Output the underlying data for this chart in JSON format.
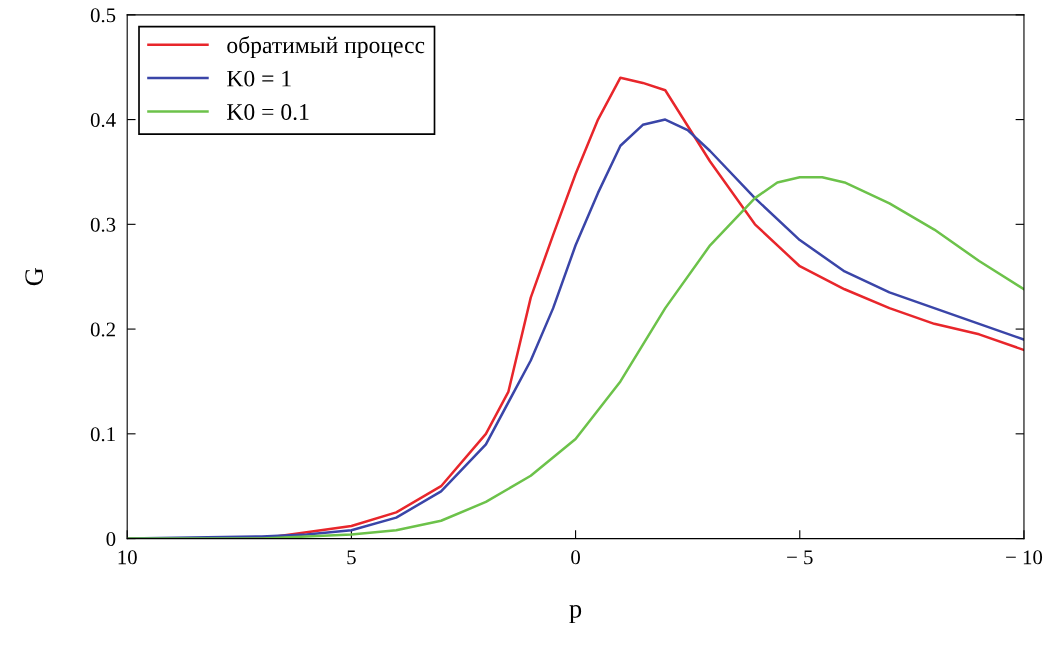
{
  "chart_data": {
    "type": "line",
    "xlabel": "p",
    "ylabel": "G",
    "xlim": [
      10,
      -10
    ],
    "xticks": [
      10,
      5,
      0,
      {
        "value": -5,
        "label": "− 5"
      },
      {
        "value": -10,
        "label": "− 10"
      }
    ],
    "ylim": [
      0,
      0.5
    ],
    "yticks": [
      0,
      0.1,
      0.2,
      0.3,
      0.4,
      0.5
    ],
    "grid": false,
    "legend": "top left",
    "marker": "none",
    "line_style": "solid",
    "series": [
      {
        "name": "обратимый процесс",
        "color": "#e8262b",
        "x": [
          10,
          7,
          5,
          4,
          3,
          2,
          1.5,
          1,
          0.5,
          0,
          -0.5,
          -1,
          -1.5,
          -2,
          -3,
          -4,
          -5,
          -6,
          -7,
          -8,
          -9,
          -10
        ],
        "values": [
          0,
          0,
          0.012,
          0.025,
          0.05,
          0.1,
          0.14,
          0.23,
          0.29,
          0.348,
          0.4,
          0.44,
          0.435,
          0.428,
          0.36,
          0.3,
          0.26,
          0.238,
          0.22,
          0.205,
          0.195,
          0.18
        ]
      },
      {
        "name": "K0 = 1",
        "color": "#3a45a8",
        "x": [
          10,
          7,
          6,
          5,
          4,
          3,
          2,
          1,
          0.5,
          0,
          -0.5,
          -1,
          -1.5,
          -2,
          -2.5,
          -3,
          -4,
          -5,
          -6,
          -7,
          -8,
          -9,
          -10
        ],
        "values": [
          0,
          0.002,
          0.004,
          0.008,
          0.02,
          0.045,
          0.09,
          0.17,
          0.22,
          0.28,
          0.33,
          0.375,
          0.395,
          0.4,
          0.39,
          0.37,
          0.325,
          0.285,
          0.255,
          0.235,
          0.22,
          0.205,
          0.19
        ]
      },
      {
        "name": "K0 = 0.1",
        "color": "#6cc24a",
        "x": [
          10,
          7,
          6,
          5,
          4,
          3,
          2,
          1,
          0,
          -1,
          -2,
          -3,
          -4,
          -4.5,
          -5,
          -5.5,
          -6,
          -7,
          -8,
          -9,
          -10
        ],
        "values": [
          0,
          0,
          0.002,
          0.004,
          0.008,
          0.017,
          0.035,
          0.06,
          0.095,
          0.15,
          0.22,
          0.28,
          0.325,
          0.34,
          0.345,
          0.345,
          0.34,
          0.32,
          0.295,
          0.265,
          0.238
        ]
      }
    ]
  }
}
